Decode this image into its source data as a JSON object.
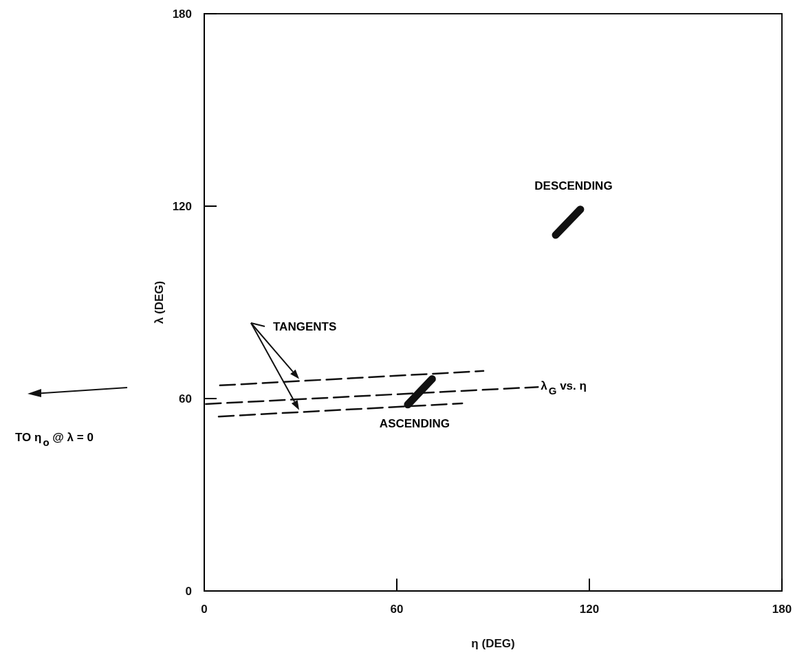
{
  "chart_data": {
    "type": "line",
    "xlabel": "η (DEG)",
    "ylabel": "λ (DEG)",
    "xlim": [
      0,
      180
    ],
    "xticks": [
      0,
      60,
      120,
      180
    ],
    "ylim": [
      0,
      180
    ],
    "yticks": [
      0,
      60,
      120,
      180
    ],
    "grid": false,
    "legend": false,
    "marker": "none",
    "series": [
      {
        "name": "λ$_{G}$ vs. η",
        "color": "#111111",
        "line_style": "dashed",
        "x": [
          0.5,
          104
        ],
        "values": [
          58.3,
          63.6
        ]
      },
      {
        "color": "#111111",
        "line_style": "dashed",
        "x": [
          4.9,
          87
        ],
        "values": [
          64.1,
          68.6
        ]
      },
      {
        "color": "#111111",
        "line_style": "dashed",
        "x": [
          4.5,
          80.4
        ],
        "values": [
          54.4,
          58.5
        ]
      },
      {
        "name": "ASCENDING",
        "color": "#111111",
        "line_style": "solid",
        "x": [
          63.4,
          71
        ],
        "values": [
          58.1,
          66.1
        ]
      },
      {
        "name": "DESCENDING",
        "color": "#111111",
        "line_style": "solid",
        "x": [
          109.5,
          117.2
        ],
        "values": [
          111,
          119
        ]
      }
    ],
    "annotations": [
      "TANGENTS",
      "TO η$_{o}$ @ λ = 0"
    ]
  }
}
